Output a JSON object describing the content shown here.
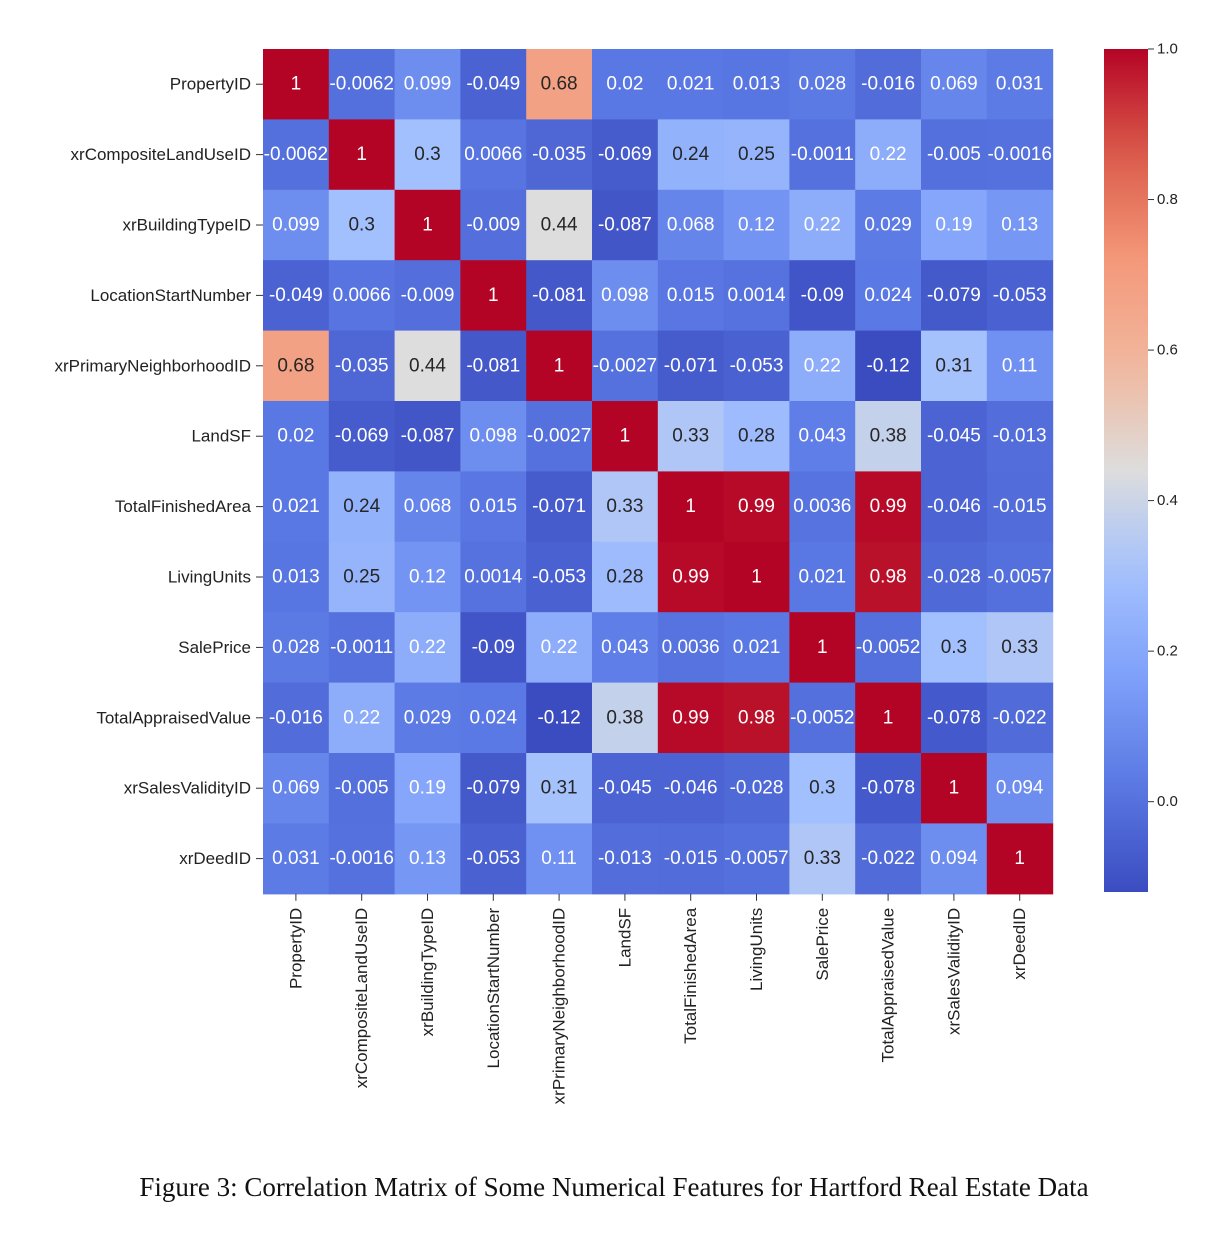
{
  "caption": "Figure 3: Correlation Matrix of Some Numerical Features for Hartford Real Estate Data",
  "chart_data": {
    "type": "heatmap",
    "colormap": "coolwarm",
    "vmin": -0.12,
    "vmax": 1.0,
    "rows": [
      "PropertyID",
      "xrCompositeLandUseID",
      "xrBuildingTypeID",
      "LocationStartNumber",
      "xrPrimaryNeighborhoodID",
      "LandSF",
      "TotalFinishedArea",
      "LivingUnits",
      "SalePrice",
      "TotalAppraisedValue",
      "xrSalesValidityID",
      "xrDeedID"
    ],
    "columns": [
      "PropertyID",
      "xrCompositeLandUseID",
      "xrBuildingTypeID",
      "LocationStartNumber",
      "xrPrimaryNeighborhoodID",
      "LandSF",
      "TotalFinishedArea",
      "LivingUnits",
      "SalePrice",
      "TotalAppraisedValue",
      "xrSalesValidityID",
      "xrDeedID"
    ],
    "values": [
      [
        1,
        -0.0062,
        0.099,
        -0.049,
        0.68,
        0.02,
        0.021,
        0.013,
        0.028,
        -0.016,
        0.069,
        0.031
      ],
      [
        -0.0062,
        1,
        0.3,
        0.0066,
        -0.035,
        -0.069,
        0.24,
        0.25,
        -0.0011,
        0.22,
        -0.005,
        -0.0016
      ],
      [
        0.099,
        0.3,
        1,
        -0.009,
        0.44,
        -0.087,
        0.068,
        0.12,
        0.22,
        0.029,
        0.19,
        0.13
      ],
      [
        -0.049,
        0.0066,
        -0.009,
        1,
        -0.081,
        0.098,
        0.015,
        0.0014,
        -0.09,
        0.024,
        -0.079,
        -0.053
      ],
      [
        0.68,
        -0.035,
        0.44,
        -0.081,
        1,
        -0.0027,
        -0.071,
        -0.053,
        0.22,
        -0.12,
        0.31,
        0.11
      ],
      [
        0.02,
        -0.069,
        -0.087,
        0.098,
        -0.0027,
        1,
        0.33,
        0.28,
        0.043,
        0.38,
        -0.045,
        -0.013
      ],
      [
        0.021,
        0.24,
        0.068,
        0.015,
        -0.071,
        0.33,
        1,
        0.99,
        0.0036,
        0.99,
        -0.046,
        -0.015
      ],
      [
        0.013,
        0.25,
        0.12,
        0.0014,
        -0.053,
        0.28,
        0.99,
        1,
        0.021,
        0.98,
        -0.028,
        -0.0057
      ],
      [
        0.028,
        -0.0011,
        0.22,
        -0.09,
        0.22,
        0.043,
        0.0036,
        0.021,
        1,
        -0.0052,
        0.3,
        0.33
      ],
      [
        -0.016,
        0.22,
        0.029,
        0.024,
        -0.12,
        0.38,
        0.99,
        0.98,
        -0.0052,
        1,
        -0.078,
        -0.022
      ],
      [
        0.069,
        -0.005,
        0.19,
        -0.079,
        0.31,
        -0.045,
        -0.046,
        -0.028,
        0.3,
        -0.078,
        1,
        0.094
      ],
      [
        0.031,
        -0.0016,
        0.13,
        -0.053,
        0.11,
        -0.013,
        -0.015,
        -0.0057,
        0.33,
        -0.022,
        0.094,
        1
      ]
    ],
    "colorbar_ticks": [
      {
        "value": 0.0,
        "label": "0.0"
      },
      {
        "value": 0.2,
        "label": "0.2"
      },
      {
        "value": 0.4,
        "label": "0.4"
      },
      {
        "value": 0.6,
        "label": "0.6"
      },
      {
        "value": 0.8,
        "label": "0.8"
      },
      {
        "value": 1.0,
        "label": "1.0"
      }
    ],
    "annotations": "cell values"
  }
}
